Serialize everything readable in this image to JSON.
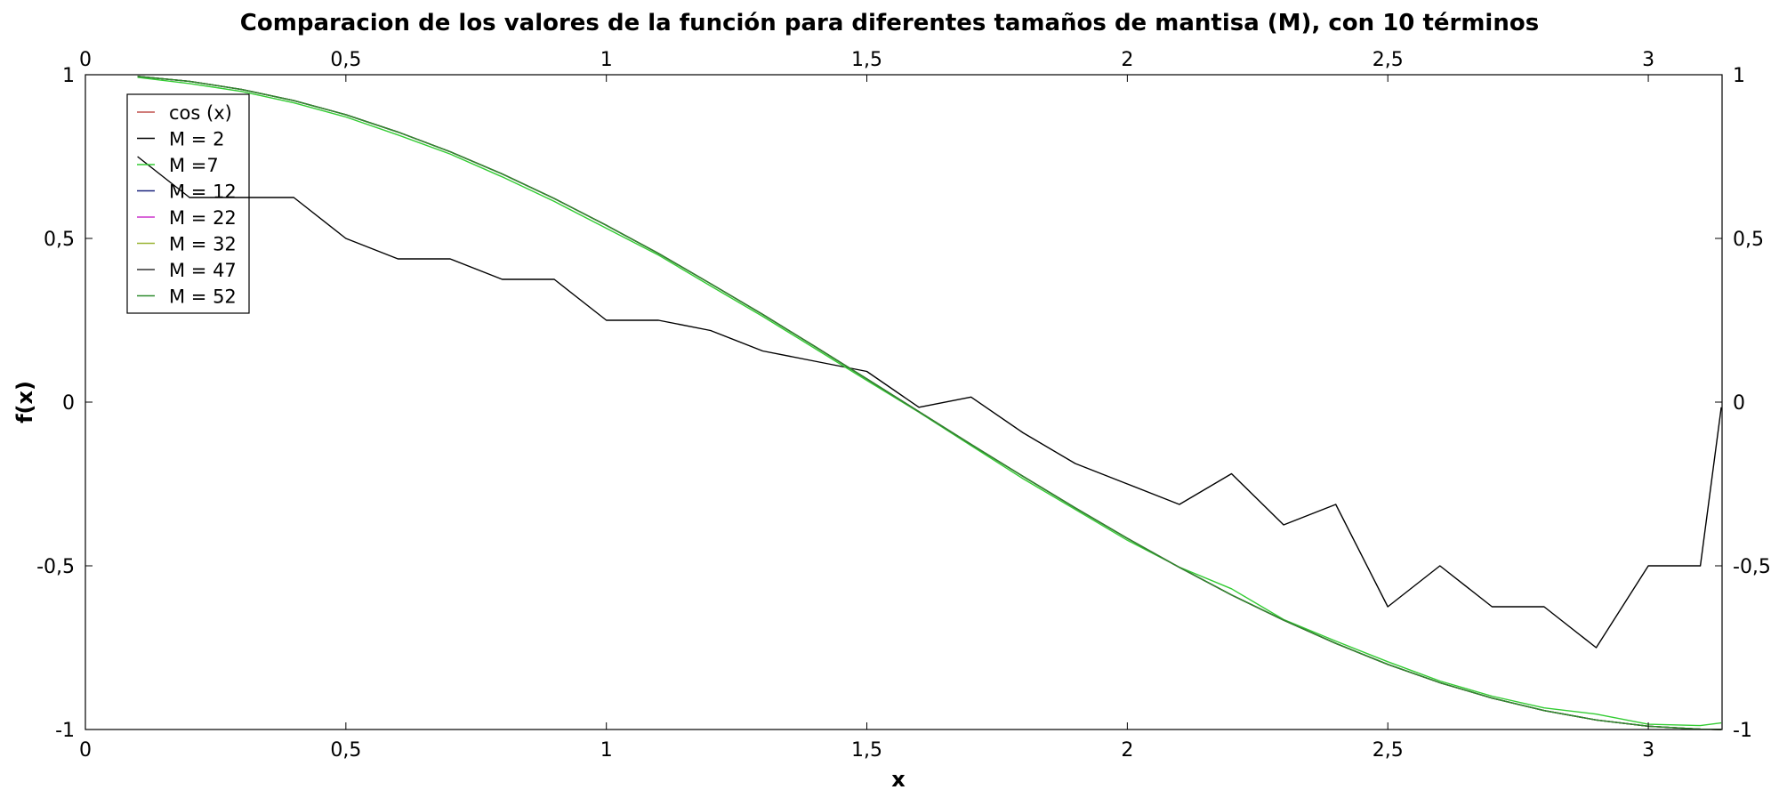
{
  "chart_data": {
    "type": "line",
    "title": "Comparacion de los valores de la función para diferentes tamaños de mantisa (M), con 10 términos",
    "xlabel": "x",
    "ylabel": "f(x)",
    "xlim": [
      0,
      3.1416
    ],
    "ylim": [
      -1,
      1
    ],
    "x_ticks": [
      0,
      0.5,
      1,
      1.5,
      2,
      2.5,
      3
    ],
    "x_tick_labels": [
      "0",
      "0,5",
      "1",
      "1,5",
      "2",
      "2,5",
      "3"
    ],
    "y_ticks": [
      1,
      0.5,
      0,
      -0.5,
      -1
    ],
    "y_tick_labels": [
      "1",
      "0,5",
      "0",
      "-0,5",
      "-1"
    ],
    "grid": false,
    "legend_position": "top-left",
    "x": [
      0.1,
      0.2,
      0.3,
      0.4,
      0.5,
      0.6,
      0.7,
      0.8,
      0.9,
      1.0,
      1.1,
      1.2,
      1.3,
      1.4,
      1.5,
      1.6,
      1.7,
      1.8,
      1.9,
      2.0,
      2.1,
      2.2,
      2.3,
      2.4,
      2.5,
      2.6,
      2.7,
      2.8,
      2.9,
      3.0,
      3.1,
      3.14
    ],
    "series": [
      {
        "name": "cos (x)",
        "color": "#c0504d",
        "values": [
          0.995,
          0.98,
          0.955,
          0.921,
          0.878,
          0.825,
          0.765,
          0.697,
          0.622,
          0.54,
          0.454,
          0.362,
          0.268,
          0.17,
          0.071,
          -0.029,
          -0.129,
          -0.227,
          -0.323,
          -0.416,
          -0.505,
          -0.589,
          -0.666,
          -0.737,
          -0.801,
          -0.857,
          -0.904,
          -0.942,
          -0.971,
          -0.99,
          -0.999,
          -1.0
        ]
      },
      {
        "name": "M = 2",
        "color": "#000000",
        "values": [
          0.75,
          0.625,
          0.625,
          0.625,
          0.5,
          0.4375,
          0.4375,
          0.375,
          0.375,
          0.25,
          0.25,
          0.21875,
          0.15625,
          0.125,
          0.09375,
          -0.015625,
          0.015625,
          -0.09375,
          -0.1875,
          -0.25,
          -0.3125,
          -0.21875,
          -0.375,
          -0.3125,
          -0.625,
          -0.5,
          -0.625,
          -0.625,
          -0.75,
          -0.5,
          -0.5,
          -0.015625
        ]
      },
      {
        "name": "M =7",
        "color": "#33cc33",
        "values": [
          0.992,
          0.973,
          0.949,
          0.914,
          0.871,
          0.816,
          0.758,
          0.688,
          0.613,
          0.531,
          0.449,
          0.355,
          0.262,
          0.164,
          0.066,
          -0.031,
          -0.133,
          -0.234,
          -0.328,
          -0.422,
          -0.504,
          -0.57,
          -0.664,
          -0.73,
          -0.793,
          -0.852,
          -0.898,
          -0.934,
          -0.953,
          -0.984,
          -0.988,
          -0.98
        ]
      },
      {
        "name": "M = 12",
        "color": "#1a237e",
        "values": [
          0.995,
          0.98,
          0.955,
          0.921,
          0.878,
          0.825,
          0.765,
          0.697,
          0.622,
          0.54,
          0.454,
          0.362,
          0.268,
          0.17,
          0.071,
          -0.029,
          -0.129,
          -0.227,
          -0.323,
          -0.416,
          -0.505,
          -0.589,
          -0.666,
          -0.737,
          -0.801,
          -0.857,
          -0.904,
          -0.942,
          -0.971,
          -0.99,
          -0.999,
          -1.0
        ]
      },
      {
        "name": "M = 22",
        "color": "#cc33cc",
        "values": [
          0.995,
          0.98,
          0.955,
          0.921,
          0.878,
          0.825,
          0.765,
          0.697,
          0.622,
          0.54,
          0.454,
          0.362,
          0.268,
          0.17,
          0.071,
          -0.029,
          -0.129,
          -0.227,
          -0.323,
          -0.416,
          -0.505,
          -0.589,
          -0.666,
          -0.737,
          -0.801,
          -0.857,
          -0.904,
          -0.942,
          -0.971,
          -0.99,
          -0.999,
          -1.0
        ]
      },
      {
        "name": "M = 32",
        "color": "#99b433",
        "values": [
          0.995,
          0.98,
          0.955,
          0.921,
          0.878,
          0.825,
          0.765,
          0.697,
          0.622,
          0.54,
          0.454,
          0.362,
          0.268,
          0.17,
          0.071,
          -0.029,
          -0.129,
          -0.227,
          -0.323,
          -0.416,
          -0.505,
          -0.589,
          -0.666,
          -0.737,
          -0.801,
          -0.857,
          -0.904,
          -0.942,
          -0.971,
          -0.99,
          -0.999,
          -1.0
        ]
      },
      {
        "name": "M = 47",
        "color": "#333333",
        "values": [
          0.995,
          0.98,
          0.955,
          0.921,
          0.878,
          0.825,
          0.765,
          0.697,
          0.622,
          0.54,
          0.454,
          0.362,
          0.268,
          0.17,
          0.071,
          -0.029,
          -0.129,
          -0.227,
          -0.323,
          -0.416,
          -0.505,
          -0.589,
          -0.666,
          -0.737,
          -0.801,
          -0.857,
          -0.904,
          -0.942,
          -0.971,
          -0.99,
          -0.999,
          -1.0
        ]
      },
      {
        "name": "M = 52",
        "color": "#2e8b2e",
        "values": [
          0.995,
          0.98,
          0.955,
          0.921,
          0.878,
          0.825,
          0.765,
          0.697,
          0.622,
          0.54,
          0.454,
          0.362,
          0.268,
          0.17,
          0.071,
          -0.029,
          -0.129,
          -0.227,
          -0.323,
          -0.416,
          -0.505,
          -0.589,
          -0.666,
          -0.737,
          -0.801,
          -0.857,
          -0.904,
          -0.942,
          -0.971,
          -0.99,
          -0.999,
          -1.0
        ]
      }
    ]
  }
}
